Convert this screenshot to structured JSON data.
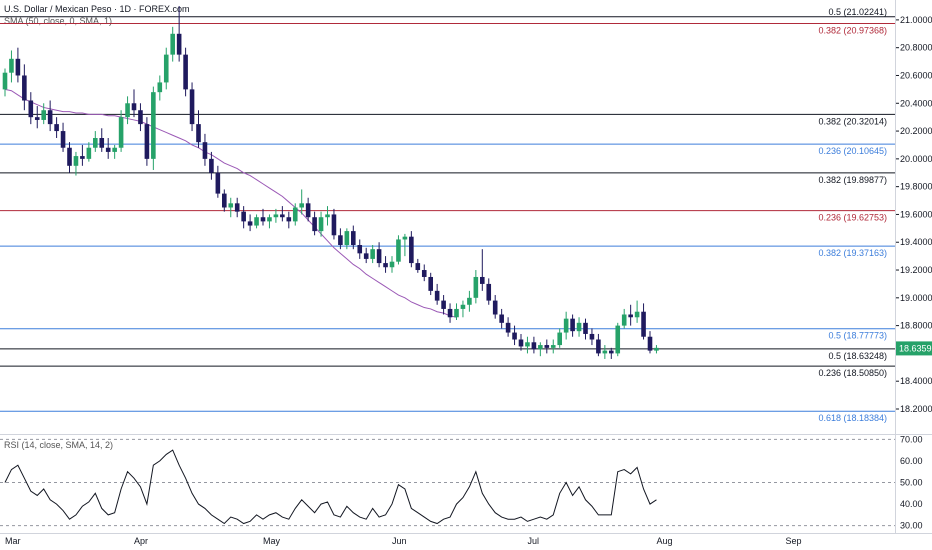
{
  "header": {
    "title": "U.S. Dollar / Mexican Peso · 1D · FOREX.com",
    "sma_label": "SMA (50, close, 0, SMA, 1)",
    "rsi_label": "RSI (14, close, SMA, 14, 2)"
  },
  "colors": {
    "up": "#26a269",
    "down": "#1f1a5e",
    "sma": "#9b59b6",
    "black_level": "#131722",
    "blue_level": "#3d7edb",
    "red_level": "#b02a3a",
    "price_tag": "#26a269"
  },
  "chart_data": {
    "type": "candlestick",
    "price_axis": {
      "ylim": [
        18.02,
        21.1
      ],
      "ticks": [
        "21.00000",
        "20.80000",
        "20.60000",
        "20.40000",
        "20.20000",
        "20.00000",
        "19.80000",
        "19.60000",
        "19.40000",
        "19.20000",
        "19.00000",
        "18.80000",
        "18.40000",
        "18.20000"
      ]
    },
    "x_labels": [
      "Mar",
      "Apr",
      "May",
      "Jun",
      "Jul",
      "Aug",
      "Sep"
    ],
    "current_price": "18.63596",
    "levels": [
      {
        "label": "0.5 (21.02241)",
        "value": 21.02241,
        "color": "black"
      },
      {
        "label": "0.382 (20.97368)",
        "value": 20.97368,
        "color": "red"
      },
      {
        "label": "0.382 (20.32014)",
        "value": 20.32014,
        "color": "black"
      },
      {
        "label": "0.236 (20.10645)",
        "value": 20.10645,
        "color": "blue"
      },
      {
        "label": "0.382 (19.89877)",
        "value": 19.89877,
        "color": "black"
      },
      {
        "label": "0.236 (19.62753)",
        "value": 19.62753,
        "color": "red"
      },
      {
        "label": "0.382 (19.37163)",
        "value": 19.37163,
        "color": "blue"
      },
      {
        "label": "0.5 (18.77773)",
        "value": 18.77773,
        "color": "blue"
      },
      {
        "label": "0.5 (18.63248)",
        "value": 18.63248,
        "color": "black"
      },
      {
        "label": "0.236 (18.50850)",
        "value": 18.5085,
        "color": "black"
      },
      {
        "label": "0.618 (18.18384)",
        "value": 18.18384,
        "color": "blue"
      }
    ],
    "series": [
      {
        "name": "USD/MXN",
        "ohlc": [
          [
            20.5,
            20.65,
            20.45,
            20.62
          ],
          [
            20.62,
            20.78,
            20.55,
            20.72
          ],
          [
            20.72,
            20.8,
            20.55,
            20.6
          ],
          [
            20.6,
            20.68,
            20.35,
            20.42
          ],
          [
            20.42,
            20.48,
            20.25,
            20.3
          ],
          [
            20.3,
            20.38,
            20.22,
            20.28
          ],
          [
            20.28,
            20.4,
            20.25,
            20.35
          ],
          [
            20.35,
            20.42,
            20.2,
            20.25
          ],
          [
            20.25,
            20.3,
            20.15,
            20.2
          ],
          [
            20.2,
            20.26,
            20.05,
            20.08
          ],
          [
            20.08,
            20.12,
            19.9,
            19.95
          ],
          [
            19.95,
            20.05,
            19.88,
            20.02
          ],
          [
            20.02,
            20.1,
            19.95,
            20.0
          ],
          [
            20.0,
            20.12,
            19.98,
            20.08
          ],
          [
            20.08,
            20.2,
            20.05,
            20.15
          ],
          [
            20.15,
            20.22,
            20.05,
            20.08
          ],
          [
            20.08,
            20.15,
            20.0,
            20.05
          ],
          [
            20.05,
            20.1,
            20.0,
            20.08
          ],
          [
            20.08,
            20.35,
            20.05,
            20.3
          ],
          [
            20.3,
            20.45,
            20.25,
            20.4
          ],
          [
            20.4,
            20.5,
            20.3,
            20.35
          ],
          [
            20.35,
            20.4,
            20.2,
            20.25
          ],
          [
            20.25,
            20.3,
            19.95,
            20.0
          ],
          [
            20.0,
            20.52,
            19.92,
            20.48
          ],
          [
            20.48,
            20.6,
            20.42,
            20.55
          ],
          [
            20.55,
            20.8,
            20.5,
            20.75
          ],
          [
            20.75,
            20.95,
            20.7,
            20.9
          ],
          [
            20.9,
            21.1,
            20.7,
            20.75
          ],
          [
            20.75,
            20.8,
            20.45,
            20.5
          ],
          [
            20.5,
            20.55,
            20.2,
            20.25
          ],
          [
            20.25,
            20.35,
            20.08,
            20.12
          ],
          [
            20.12,
            20.18,
            19.95,
            20.0
          ],
          [
            20.0,
            20.05,
            19.85,
            19.9
          ],
          [
            19.9,
            19.95,
            19.72,
            19.75
          ],
          [
            19.75,
            19.78,
            19.62,
            19.65
          ],
          [
            19.65,
            19.72,
            19.58,
            19.68
          ],
          [
            19.68,
            19.72,
            19.58,
            19.62
          ],
          [
            19.62,
            19.66,
            19.5,
            19.55
          ],
          [
            19.55,
            19.6,
            19.48,
            19.52
          ],
          [
            19.52,
            19.6,
            19.5,
            19.58
          ],
          [
            19.58,
            19.64,
            19.52,
            19.55
          ],
          [
            19.55,
            19.6,
            19.5,
            19.58
          ],
          [
            19.58,
            19.64,
            19.54,
            19.6
          ],
          [
            19.6,
            19.66,
            19.55,
            19.58
          ],
          [
            19.58,
            19.62,
            19.5,
            19.55
          ],
          [
            19.55,
            19.68,
            19.52,
            19.65
          ],
          [
            19.65,
            19.78,
            19.6,
            19.68
          ],
          [
            19.68,
            19.72,
            19.55,
            19.58
          ],
          [
            19.58,
            19.62,
            19.45,
            19.48
          ],
          [
            19.48,
            19.62,
            19.44,
            19.58
          ],
          [
            19.58,
            19.66,
            19.52,
            19.6
          ],
          [
            19.6,
            19.64,
            19.42,
            19.45
          ],
          [
            19.45,
            19.5,
            19.35,
            19.38
          ],
          [
            19.38,
            19.5,
            19.35,
            19.48
          ],
          [
            19.48,
            19.52,
            19.35,
            19.38
          ],
          [
            19.38,
            19.42,
            19.28,
            19.32
          ],
          [
            19.32,
            19.36,
            19.25,
            19.28
          ],
          [
            19.28,
            19.38,
            19.25,
            19.35
          ],
          [
            19.35,
            19.4,
            19.22,
            19.25
          ],
          [
            19.25,
            19.3,
            19.18,
            19.22
          ],
          [
            19.22,
            19.3,
            19.18,
            19.26
          ],
          [
            19.26,
            19.45,
            19.24,
            19.42
          ],
          [
            19.42,
            19.46,
            19.3,
            19.44
          ],
          [
            19.44,
            19.48,
            19.22,
            19.25
          ],
          [
            19.25,
            19.28,
            19.18,
            19.2
          ],
          [
            19.2,
            19.24,
            19.12,
            19.15
          ],
          [
            19.15,
            19.18,
            19.02,
            19.05
          ],
          [
            19.05,
            19.1,
            18.95,
            18.98
          ],
          [
            18.98,
            19.02,
            18.88,
            18.92
          ],
          [
            18.92,
            18.96,
            18.82,
            18.86
          ],
          [
            18.86,
            18.96,
            18.84,
            18.92
          ],
          [
            18.92,
            18.98,
            18.86,
            18.95
          ],
          [
            18.95,
            19.05,
            18.9,
            19.0
          ],
          [
            19.0,
            19.2,
            18.96,
            19.15
          ],
          [
            19.15,
            19.35,
            19.05,
            19.1
          ],
          [
            19.1,
            19.14,
            18.95,
            18.98
          ],
          [
            18.98,
            19.02,
            18.85,
            18.88
          ],
          [
            18.88,
            18.92,
            18.78,
            18.82
          ],
          [
            18.82,
            18.86,
            18.72,
            18.75
          ],
          [
            18.75,
            18.8,
            18.66,
            18.7
          ],
          [
            18.7,
            18.74,
            18.62,
            18.65
          ],
          [
            18.65,
            18.72,
            18.6,
            18.68
          ],
          [
            18.68,
            18.72,
            18.6,
            18.63
          ],
          [
            18.63,
            18.68,
            18.58,
            18.66
          ],
          [
            18.66,
            18.7,
            18.6,
            18.64
          ],
          [
            18.64,
            18.7,
            18.6,
            18.66
          ],
          [
            18.66,
            18.78,
            18.64,
            18.75
          ],
          [
            18.75,
            18.9,
            18.7,
            18.85
          ],
          [
            18.85,
            18.88,
            18.72,
            18.76
          ],
          [
            18.76,
            18.86,
            18.72,
            18.82
          ],
          [
            18.82,
            18.85,
            18.7,
            18.74
          ],
          [
            18.74,
            18.78,
            18.66,
            18.7
          ],
          [
            18.7,
            18.74,
            18.58,
            18.6
          ],
          [
            18.6,
            18.66,
            18.56,
            18.62
          ],
          [
            18.62,
            18.64,
            18.56,
            18.6
          ],
          [
            18.6,
            18.82,
            18.58,
            18.8
          ],
          [
            18.8,
            18.92,
            18.78,
            18.88
          ],
          [
            18.88,
            18.95,
            18.8,
            18.86
          ],
          [
            18.86,
            18.98,
            18.82,
            18.9
          ],
          [
            18.9,
            18.96,
            18.7,
            18.72
          ],
          [
            18.72,
            18.76,
            18.6,
            18.62
          ],
          [
            18.62,
            18.66,
            18.6,
            18.64
          ]
        ]
      },
      {
        "name": "SMA 50",
        "values": [
          20.5,
          20.49,
          20.46,
          20.43,
          20.41,
          20.39,
          20.37,
          20.36,
          20.35,
          20.34,
          20.34,
          20.33,
          20.33,
          20.32,
          20.32,
          20.32,
          20.31,
          20.31,
          20.3,
          20.29,
          20.28,
          20.27,
          20.25,
          20.23,
          20.21,
          20.19,
          20.17,
          20.15,
          20.13,
          20.1,
          20.08,
          20.05,
          20.03,
          20.0,
          19.97,
          19.95,
          19.93,
          19.9,
          19.88,
          19.85,
          19.82,
          19.79,
          19.76,
          19.73,
          19.69,
          19.65,
          19.61,
          19.56,
          19.51,
          19.46,
          19.41,
          19.36,
          19.32,
          19.28,
          19.24,
          19.21,
          19.17,
          19.14,
          19.11,
          19.08,
          19.05,
          19.02,
          19.0,
          18.97,
          18.95,
          18.93,
          18.92,
          18.9,
          18.89,
          18.87,
          18.86
        ]
      }
    ],
    "rsi": {
      "label": "RSI (14, close, SMA, 14, 2)",
      "ticks": [
        "70.00",
        "60.00",
        "50.00",
        "40.00",
        "30.00"
      ],
      "ylim": [
        28,
        72
      ],
      "values": [
        50,
        56,
        58,
        52,
        46,
        44,
        47,
        42,
        40,
        37,
        33,
        35,
        39,
        41,
        45,
        38,
        35,
        36,
        47,
        55,
        52,
        48,
        40,
        58,
        60,
        63,
        65,
        58,
        52,
        45,
        40,
        38,
        35,
        33,
        31,
        34,
        33,
        31,
        32,
        35,
        33,
        35,
        36,
        34,
        33,
        38,
        42,
        39,
        36,
        40,
        41,
        35,
        34,
        39,
        36,
        34,
        33,
        38,
        34,
        35,
        40,
        49,
        47,
        38,
        36,
        34,
        32,
        31,
        33,
        34,
        40,
        43,
        48,
        55,
        45,
        40,
        36,
        34,
        33,
        33,
        34,
        32,
        33,
        34,
        33,
        35,
        45,
        50,
        44,
        48,
        42,
        39,
        35,
        35,
        35,
        55,
        56,
        54,
        57,
        47,
        40,
        42
      ]
    }
  }
}
